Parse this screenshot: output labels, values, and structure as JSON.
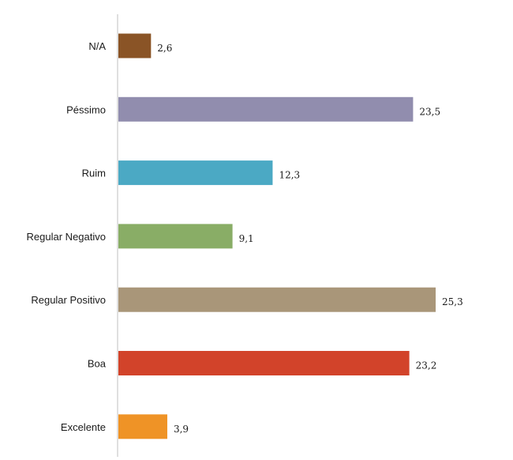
{
  "chart_data": {
    "type": "bar",
    "orientation": "horizontal",
    "categories": [
      "N/A",
      "Péssimo",
      "Ruim",
      "Regular Negativo",
      "Regular Positivo",
      "Boa",
      "Excelente"
    ],
    "values": [
      2.6,
      23.5,
      12.3,
      9.1,
      25.3,
      23.2,
      3.9
    ],
    "value_labels": [
      "2,6",
      "23,5",
      "12,3",
      "9,1",
      "25,3",
      "23,2",
      "3,9"
    ],
    "colors": [
      "#8a5426",
      "#918dae",
      "#4ba9c4",
      "#89ad66",
      "#a99679",
      "#d2432a",
      "#ef9326"
    ],
    "xlim": [
      0,
      25.3
    ],
    "grid": false,
    "legend": "none"
  }
}
